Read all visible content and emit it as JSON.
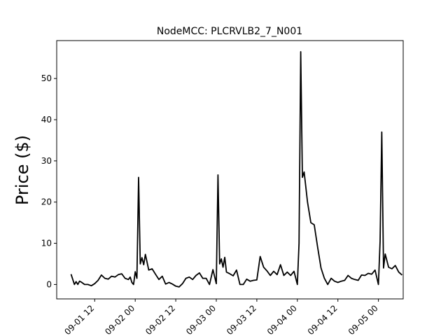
{
  "chart_data": {
    "type": "line",
    "title": "NodeMCC: PLCRVLB2_7_N001",
    "xlabel": "",
    "ylabel": "Price ($)",
    "ylim": [
      -3.5,
      59.2
    ],
    "xlim": [
      "2018-09-01 00:45",
      "2018-09-05 07:20"
    ],
    "grid": false,
    "yticks": [
      0,
      10,
      20,
      30,
      40,
      50
    ],
    "xticks": [
      {
        "value": "2018-09-01 12:00",
        "label": "09-01 12"
      },
      {
        "value": "2018-09-02 00:00",
        "label": "09-02 00"
      },
      {
        "value": "2018-09-02 12:00",
        "label": "09-02 12"
      },
      {
        "value": "2018-09-03 00:00",
        "label": "09-03 00"
      },
      {
        "value": "2018-09-03 12:00",
        "label": "09-03 12"
      },
      {
        "value": "2018-09-04 00:00",
        "label": "09-04 00"
      },
      {
        "value": "2018-09-04 12:00",
        "label": "09-04 12"
      },
      {
        "value": "2018-09-05 00:00",
        "label": "09-05 00"
      }
    ],
    "series": [
      {
        "color": "#000000",
        "x": [
          "2018-09-01 05:00",
          "2018-09-01 06:00",
          "2018-09-01 06:30",
          "2018-09-01 07:00",
          "2018-09-01 07:30",
          "2018-09-01 08:00",
          "2018-09-01 08:30",
          "2018-09-01 09:00",
          "2018-09-01 10:00",
          "2018-09-01 11:00",
          "2018-09-01 12:00",
          "2018-09-01 13:00",
          "2018-09-01 14:00",
          "2018-09-01 15:00",
          "2018-09-01 16:00",
          "2018-09-01 17:00",
          "2018-09-01 18:00",
          "2018-09-01 19:00",
          "2018-09-01 20:00",
          "2018-09-01 21:00",
          "2018-09-01 22:00",
          "2018-09-01 22:30",
          "2018-09-01 23:00",
          "2018-09-01 23:30",
          "2018-09-02 00:00",
          "2018-09-02 00:30",
          "2018-09-02 01:00",
          "2018-09-02 01:30",
          "2018-09-02 02:00",
          "2018-09-02 02:30",
          "2018-09-02 03:00",
          "2018-09-02 04:00",
          "2018-09-02 05:00",
          "2018-09-02 06:00",
          "2018-09-02 07:00",
          "2018-09-02 08:00",
          "2018-09-02 09:00",
          "2018-09-02 10:00",
          "2018-09-02 11:00",
          "2018-09-02 12:00",
          "2018-09-02 13:00",
          "2018-09-02 14:00",
          "2018-09-02 15:00",
          "2018-09-02 16:00",
          "2018-09-02 17:00",
          "2018-09-02 18:00",
          "2018-09-02 19:00",
          "2018-09-02 20:00",
          "2018-09-02 21:00",
          "2018-09-02 22:00",
          "2018-09-02 23:00",
          "2018-09-03 00:00",
          "2018-09-03 00:30",
          "2018-09-03 01:00",
          "2018-09-03 01:30",
          "2018-09-03 02:00",
          "2018-09-03 02:30",
          "2018-09-03 03:00",
          "2018-09-03 04:00",
          "2018-09-03 05:00",
          "2018-09-03 06:00",
          "2018-09-03 07:00",
          "2018-09-03 08:00",
          "2018-09-03 09:00",
          "2018-09-03 10:00",
          "2018-09-03 11:00",
          "2018-09-03 12:00",
          "2018-09-03 13:00",
          "2018-09-03 14:00",
          "2018-09-03 15:00",
          "2018-09-03 16:00",
          "2018-09-03 17:00",
          "2018-09-03 18:00",
          "2018-09-03 19:00",
          "2018-09-03 20:00",
          "2018-09-03 21:00",
          "2018-09-03 22:00",
          "2018-09-03 23:00",
          "2018-09-04 00:00",
          "2018-09-04 00:30",
          "2018-09-04 01:00",
          "2018-09-04 01:30",
          "2018-09-04 02:00",
          "2018-09-04 03:00",
          "2018-09-04 04:00",
          "2018-09-04 05:00",
          "2018-09-04 06:00",
          "2018-09-04 07:00",
          "2018-09-04 08:00",
          "2018-09-04 09:00",
          "2018-09-04 10:00",
          "2018-09-04 11:00",
          "2018-09-04 12:00",
          "2018-09-04 13:00",
          "2018-09-04 14:00",
          "2018-09-04 15:00",
          "2018-09-04 16:00",
          "2018-09-04 17:00",
          "2018-09-04 18:00",
          "2018-09-04 19:00",
          "2018-09-04 20:00",
          "2018-09-04 21:00",
          "2018-09-04 22:00",
          "2018-09-04 23:00",
          "2018-09-05 00:00",
          "2018-09-05 00:30",
          "2018-09-05 01:00",
          "2018-09-05 01:30",
          "2018-09-05 02:00",
          "2018-09-05 03:00",
          "2018-09-05 04:00",
          "2018-09-05 05:00",
          "2018-09-05 06:00",
          "2018-09-05 07:00"
        ],
        "y": [
          2.5,
          0,
          0.7,
          0,
          0.8,
          0.6,
          0.3,
          0,
          0,
          -0.3,
          0.2,
          1,
          2.3,
          1.5,
          1.3,
          2,
          1.8,
          2.4,
          2.6,
          1.5,
          1.2,
          1.8,
          0.5,
          0,
          3.1,
          1.5,
          26,
          5,
          6.5,
          4.8,
          7.3,
          3.5,
          3.8,
          2.5,
          1.2,
          2,
          0.1,
          0.5,
          0.1,
          -0.4,
          -0.6,
          0.2,
          1.5,
          1.8,
          1.2,
          2.2,
          2.8,
          1.5,
          1.5,
          0,
          3.6,
          0.2,
          26.6,
          5,
          6.2,
          4.2,
          6.6,
          3,
          2.6,
          2.1,
          3.5,
          0,
          0,
          1.3,
          0.8,
          1,
          1.1,
          6.8,
          4.2,
          3.3,
          2.2,
          3.2,
          2.4,
          4.8,
          2.2,
          3,
          2.2,
          3.2,
          0,
          10,
          56.5,
          26,
          27.3,
          20,
          15,
          14.5,
          9,
          4,
          1.5,
          0,
          1.5,
          0.8,
          0.5,
          0.8,
          1,
          2.2,
          1.5,
          1.2,
          1,
          2.3,
          2.2,
          2.7,
          2.5,
          3.5,
          0,
          10.5,
          37,
          4,
          7.4,
          4.2,
          3.8,
          4.6,
          3,
          2.3
        ]
      }
    ]
  }
}
